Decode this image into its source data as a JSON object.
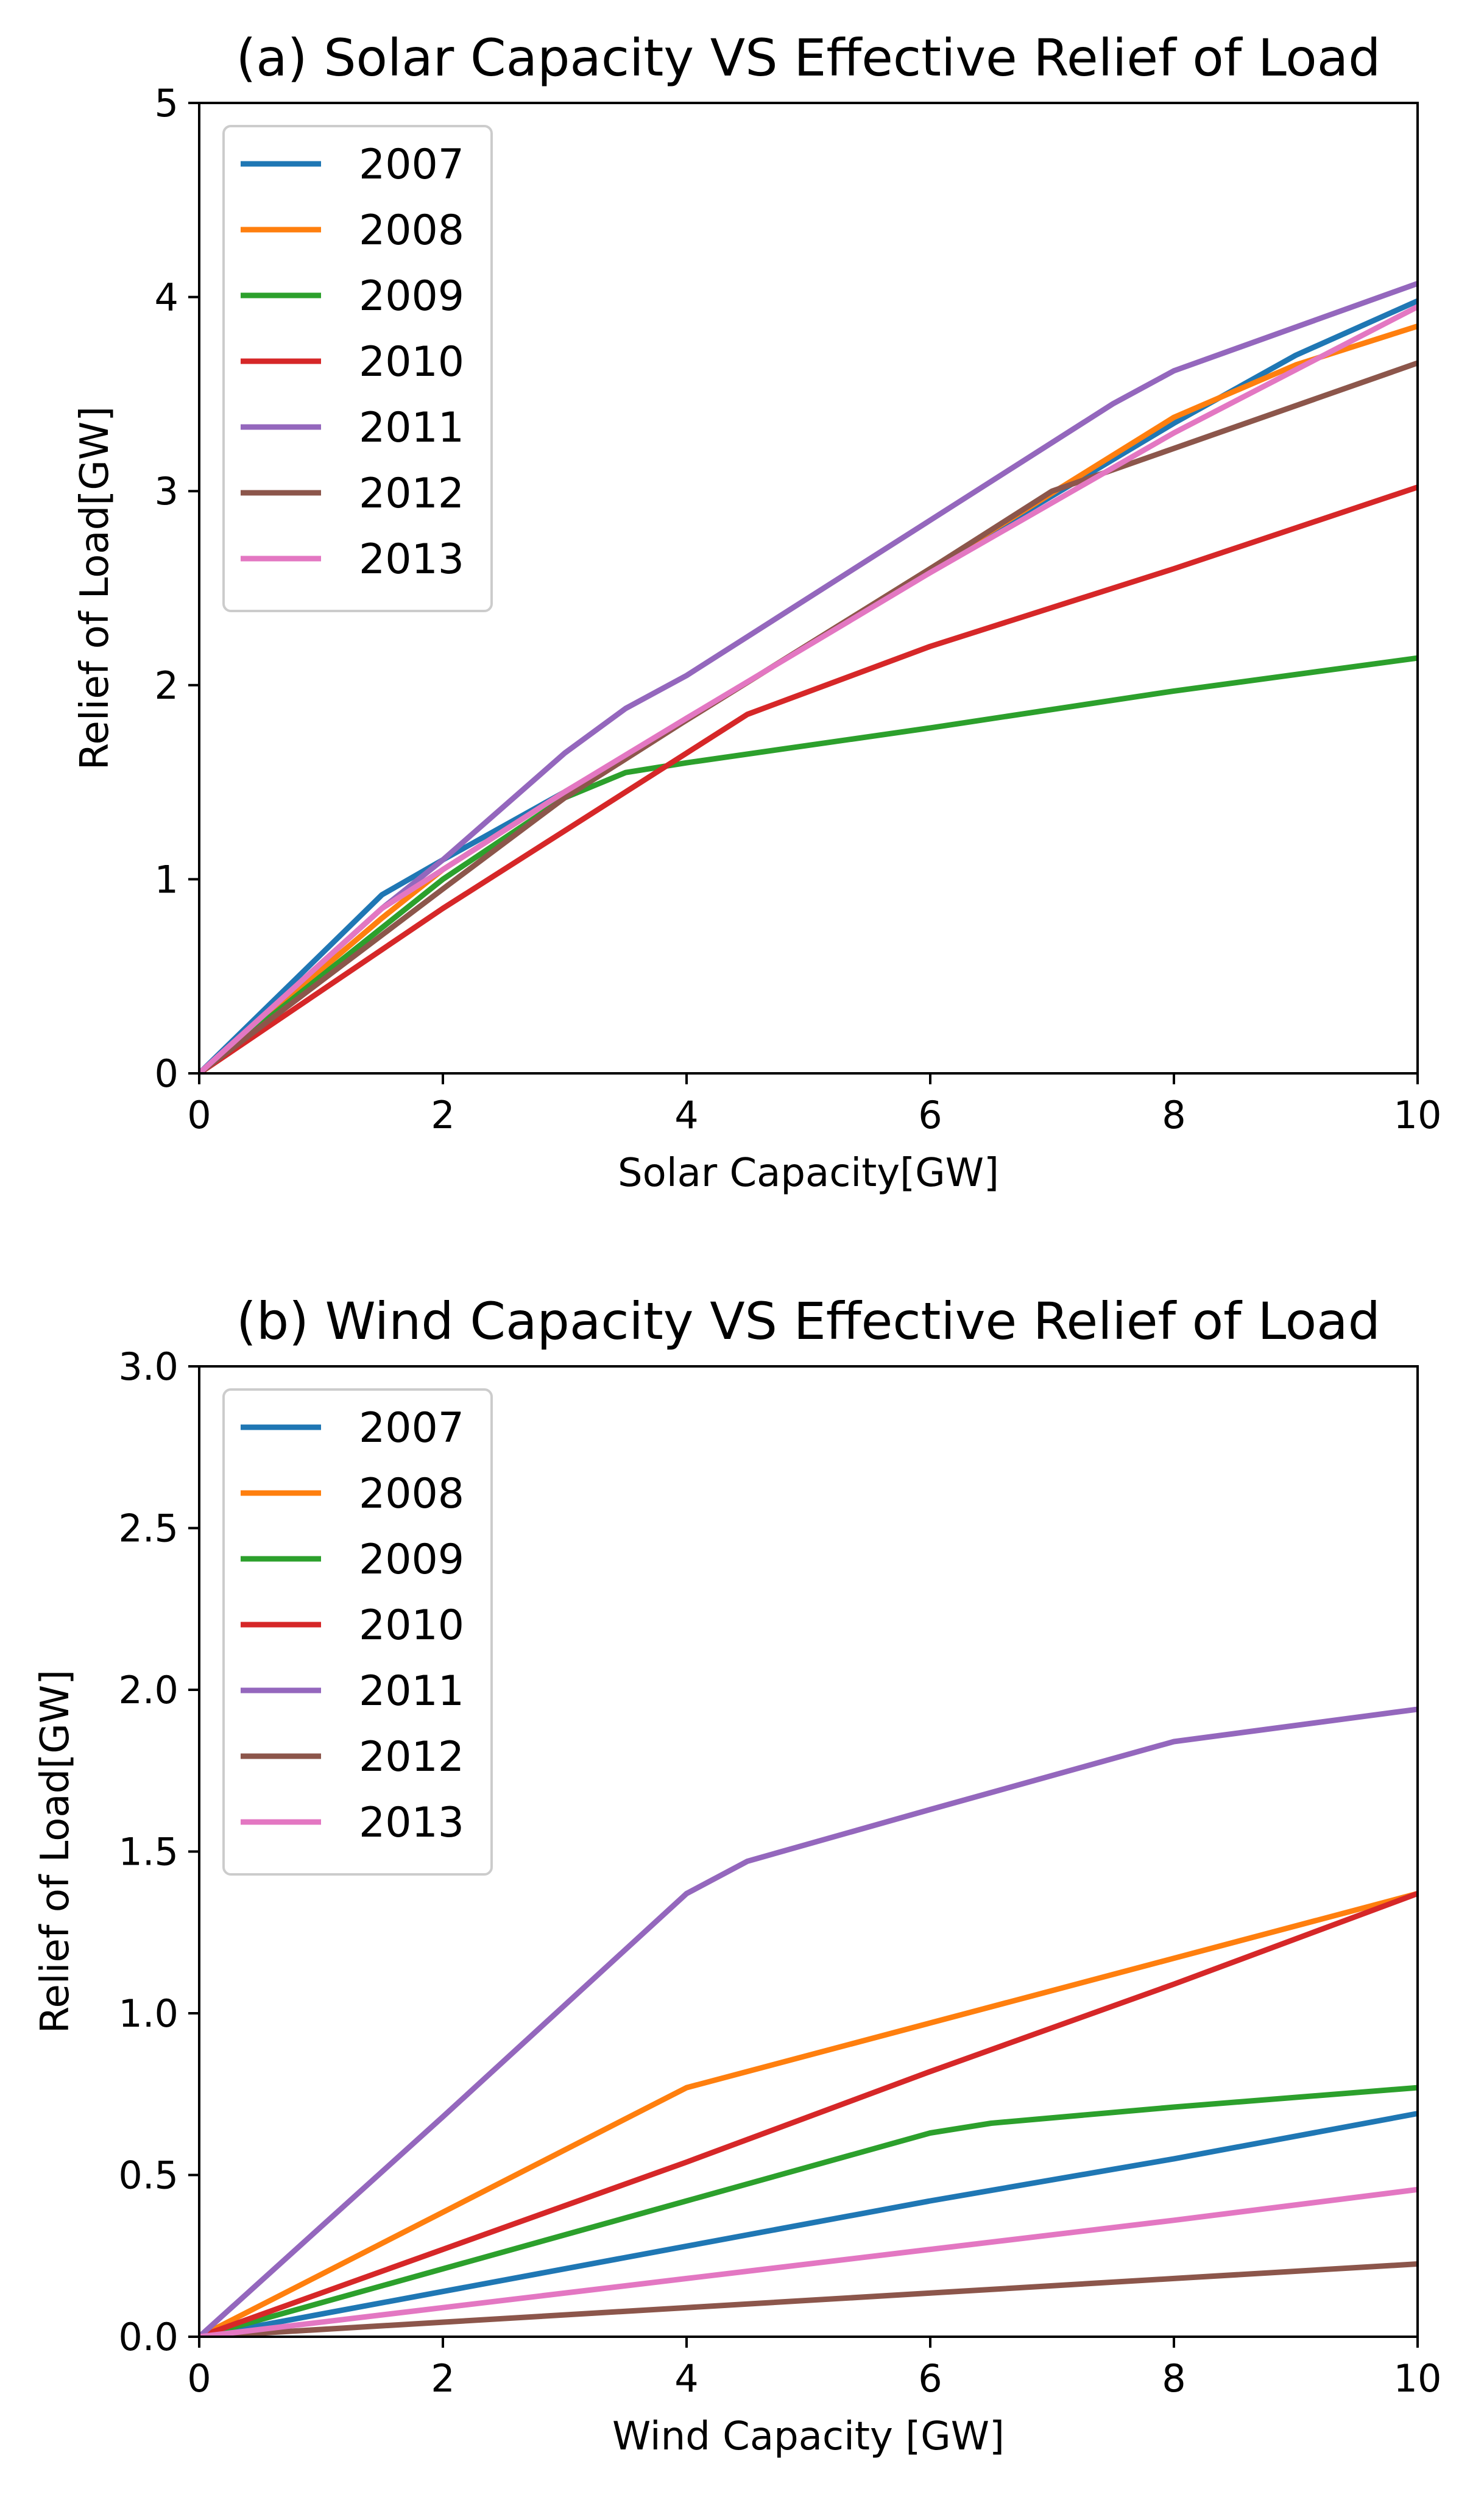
{
  "chart_data": [
    {
      "type": "line",
      "title": "(a) Solar Capacity VS Effective Relief of Load",
      "xlabel": "Solar Capacity[GW]",
      "ylabel": "Relief of Load[GW]",
      "xlim": [
        0,
        10
      ],
      "ylim": [
        0,
        5
      ],
      "xticks": [
        0,
        2,
        4,
        6,
        8,
        10
      ],
      "yticks": [
        0,
        1,
        2,
        3,
        4,
        5
      ],
      "xtick_labels": [
        "0",
        "2",
        "4",
        "6",
        "8",
        "10"
      ],
      "ytick_labels": [
        "0",
        "1",
        "2",
        "3",
        "4",
        "5"
      ],
      "grid": false,
      "legend_position": "top-left",
      "series": [
        {
          "name": "2007",
          "color": "#1f77b4",
          "x": [
            0,
            1.5,
            2,
            3,
            4,
            6,
            8,
            9,
            10
          ],
          "y": [
            0,
            0.92,
            1.1,
            1.45,
            1.82,
            2.6,
            3.35,
            3.7,
            3.98
          ]
        },
        {
          "name": "2008",
          "color": "#ff7f0e",
          "x": [
            0,
            1.5,
            2,
            3,
            4,
            6,
            8,
            9,
            10
          ],
          "y": [
            0,
            0.8,
            1.05,
            1.45,
            1.82,
            2.6,
            3.38,
            3.65,
            3.85
          ]
        },
        {
          "name": "2009",
          "color": "#2ca02c",
          "x": [
            0,
            1.5,
            2,
            3,
            3.5,
            4,
            6,
            8,
            10
          ],
          "y": [
            0,
            0.75,
            1.0,
            1.42,
            1.55,
            1.6,
            1.78,
            1.97,
            2.14
          ]
        },
        {
          "name": "2010",
          "color": "#d62728",
          "x": [
            0,
            2,
            3,
            4,
            4.5,
            6,
            8,
            10
          ],
          "y": [
            0,
            0.85,
            1.25,
            1.65,
            1.85,
            2.2,
            2.6,
            3.02
          ]
        },
        {
          "name": "2011",
          "color": "#9467bd",
          "x": [
            0,
            1.5,
            2,
            3,
            3.5,
            4,
            6,
            7.5,
            8,
            10
          ],
          "y": [
            0,
            0.85,
            1.1,
            1.65,
            1.88,
            2.05,
            2.85,
            3.45,
            3.62,
            4.07
          ]
        },
        {
          "name": "2012",
          "color": "#8c564b",
          "x": [
            0,
            2,
            3,
            4,
            6,
            7,
            8,
            10
          ],
          "y": [
            0,
            0.95,
            1.42,
            1.82,
            2.6,
            3.0,
            3.22,
            3.66
          ]
        },
        {
          "name": "2013",
          "color": "#e377c2",
          "x": [
            0,
            1.5,
            2,
            3,
            4,
            6,
            8,
            10
          ],
          "y": [
            0,
            0.85,
            1.05,
            1.45,
            1.83,
            2.58,
            3.3,
            3.95
          ]
        }
      ]
    },
    {
      "type": "line",
      "title": "(b) Wind Capacity VS Effective Relief of Load",
      "xlabel": "Wind Capacity [GW]",
      "ylabel": "Relief of Load[GW]",
      "xlim": [
        0,
        10
      ],
      "ylim": [
        0,
        3
      ],
      "xticks": [
        0,
        2,
        4,
        6,
        8,
        10
      ],
      "yticks": [
        0,
        0.5,
        1,
        1.5,
        2,
        2.5,
        3
      ],
      "xtick_labels": [
        "0",
        "2",
        "4",
        "6",
        "8",
        "10"
      ],
      "ytick_labels": [
        "0.0",
        "0.5",
        "1.0",
        "1.5",
        "2.0",
        "2.5",
        "3.0"
      ],
      "grid": false,
      "legend_position": "top-left",
      "series": [
        {
          "name": "2007",
          "color": "#1f77b4",
          "x": [
            0,
            2,
            4,
            6,
            8,
            10
          ],
          "y": [
            0,
            0.14,
            0.28,
            0.42,
            0.55,
            0.69
          ]
        },
        {
          "name": "2008",
          "color": "#ff7f0e",
          "x": [
            0,
            2,
            4,
            6,
            8,
            10
          ],
          "y": [
            0,
            0.385,
            0.77,
            0.97,
            1.17,
            1.37
          ]
        },
        {
          "name": "2009",
          "color": "#2ca02c",
          "x": [
            0,
            2,
            4,
            6,
            6.5,
            8,
            10
          ],
          "y": [
            0,
            0.21,
            0.42,
            0.63,
            0.66,
            0.71,
            0.77
          ]
        },
        {
          "name": "2010",
          "color": "#d62728",
          "x": [
            0,
            2,
            4,
            6,
            8,
            10
          ],
          "y": [
            0,
            0.27,
            0.54,
            0.82,
            1.09,
            1.37
          ]
        },
        {
          "name": "2011",
          "color": "#9467bd",
          "x": [
            0,
            2,
            4,
            4.5,
            6,
            8,
            10
          ],
          "y": [
            0,
            0.68,
            1.37,
            1.47,
            1.63,
            1.84,
            1.94
          ]
        },
        {
          "name": "2012",
          "color": "#8c564b",
          "x": [
            0,
            2,
            4,
            6,
            8,
            10
          ],
          "y": [
            0,
            0.045,
            0.09,
            0.135,
            0.18,
            0.225
          ]
        },
        {
          "name": "2013",
          "color": "#e377c2",
          "x": [
            0,
            2,
            4,
            6,
            8,
            10
          ],
          "y": [
            0,
            0.09,
            0.18,
            0.27,
            0.36,
            0.455
          ]
        }
      ]
    }
  ]
}
